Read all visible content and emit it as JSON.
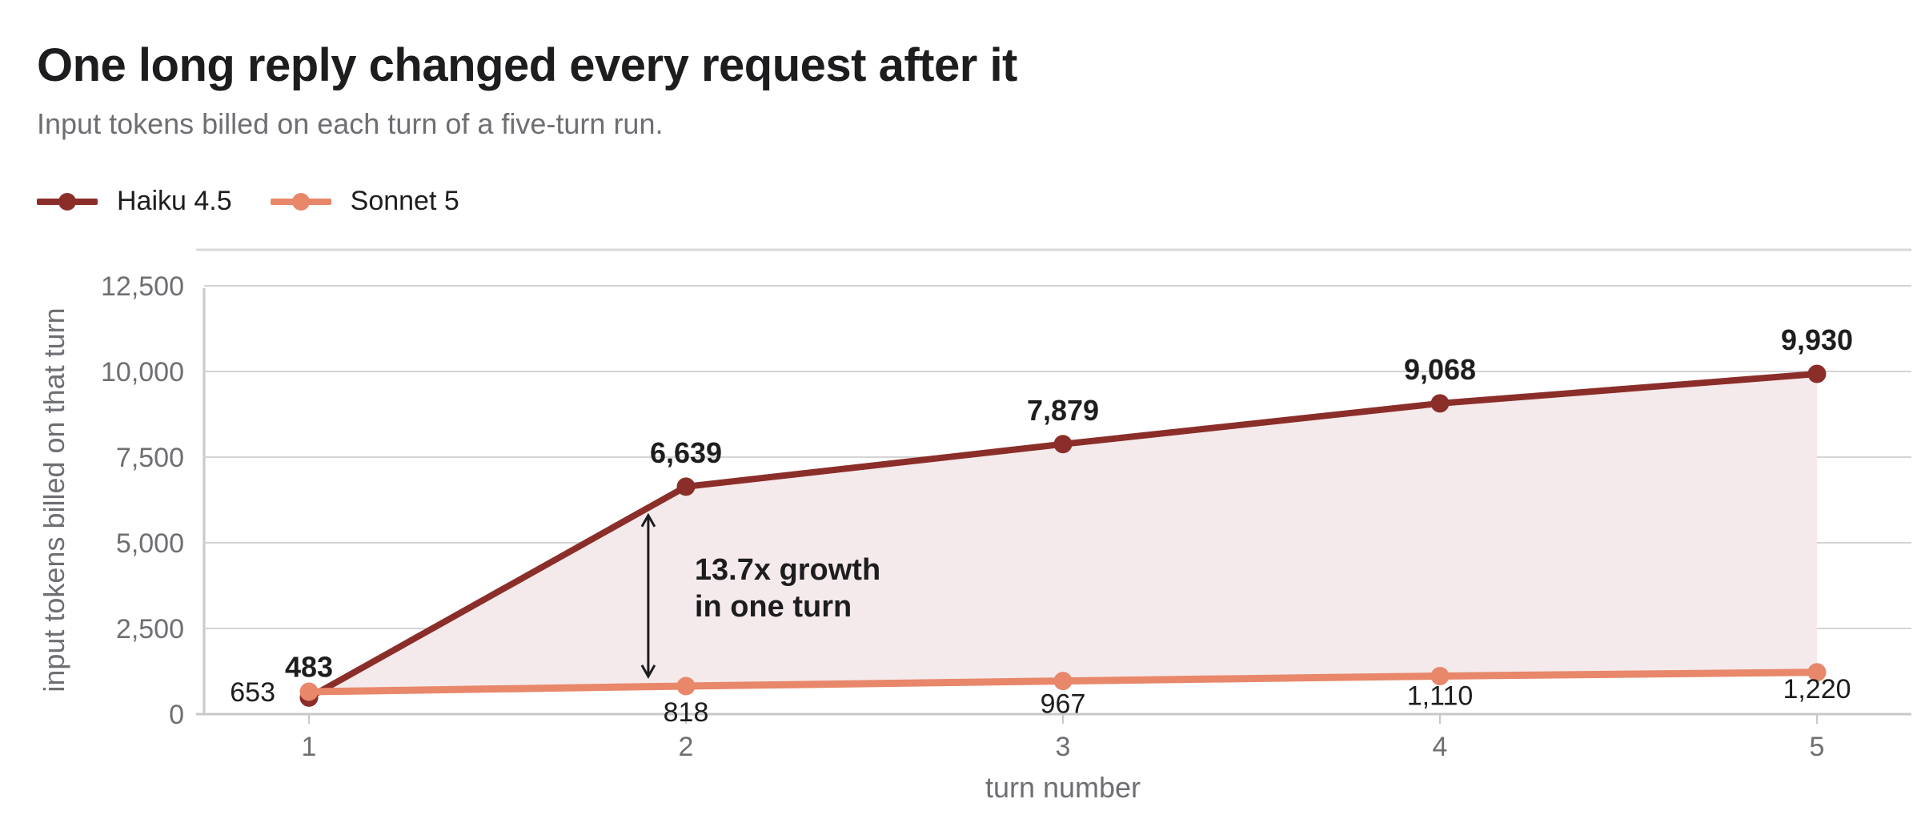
{
  "chart_data": {
    "type": "line",
    "title": "One long reply changed every request after it",
    "subtitle": "Input tokens billed on each turn of a five-turn run.",
    "xlabel": "turn number",
    "ylabel": "input tokens billed on that turn",
    "x": [
      1,
      2,
      3,
      4,
      5
    ],
    "x_tick_labels": [
      "1",
      "2",
      "3",
      "4",
      "5"
    ],
    "ylim": [
      0,
      12500
    ],
    "y_ticks": [
      0,
      2500,
      5000,
      7500,
      10000,
      12500
    ],
    "y_tick_labels": [
      "0",
      "2,500",
      "5,000",
      "7,500",
      "10,000",
      "12,500"
    ],
    "grid": true,
    "legend_position": "top-left",
    "series": [
      {
        "name": "Haiku 4.5",
        "color": "#8b2e2a",
        "values": [
          483,
          6639,
          7879,
          9068,
          9930
        ],
        "value_labels": [
          "483",
          "6,639",
          "7,879",
          "9,068",
          "9,930"
        ]
      },
      {
        "name": "Sonnet 5",
        "color": "#e8876a",
        "values": [
          653,
          818,
          967,
          1110,
          1220
        ],
        "value_labels": [
          "653",
          "818",
          "967",
          "1,110",
          "1,220"
        ]
      }
    ],
    "fill_between_color": "#f5eaeb",
    "annotation": {
      "lines": [
        "13.7x growth",
        "in one turn"
      ],
      "at_x": 1.9,
      "arrow_from": 1100,
      "arrow_to": 5800
    }
  }
}
